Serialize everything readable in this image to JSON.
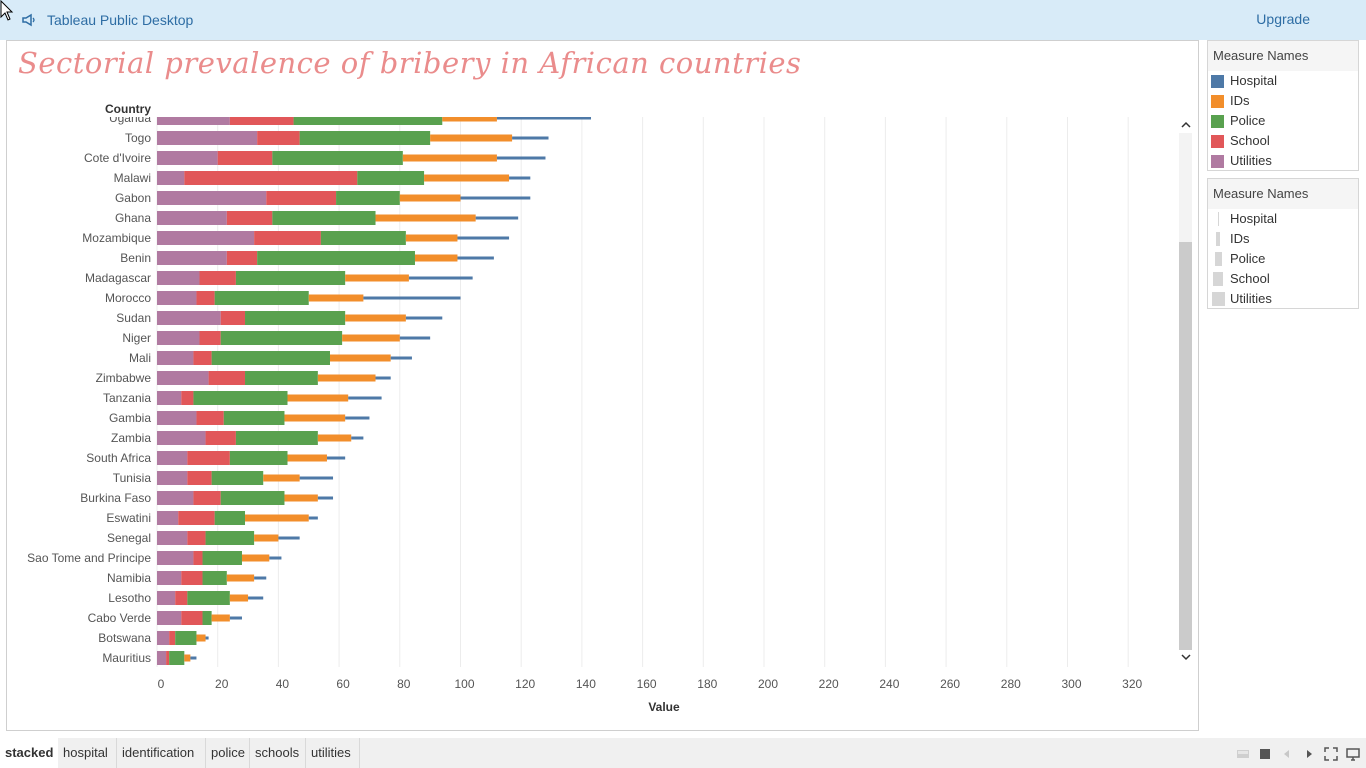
{
  "app": {
    "title": "Tableau Public Desktop",
    "upgrade_label": "Upgrade"
  },
  "viz": {
    "title": "Sectorial prevalence of bribery in African countries",
    "row_header": "Country",
    "x_axis_title": "Value"
  },
  "chart_data": {
    "type": "bar",
    "stacked": true,
    "orientation": "horizontal",
    "title": "Sectorial prevalence of bribery in African countries",
    "xlabel": "Value",
    "ylabel": "Country",
    "xlim": [
      0,
      330
    ],
    "xticks": [
      0,
      20,
      40,
      60,
      80,
      100,
      120,
      140,
      160,
      180,
      200,
      220,
      240,
      260,
      280,
      300,
      320
    ],
    "grid": true,
    "legend_position": "right",
    "categories": [
      "Uganda",
      "Togo",
      "Cote d'Ivoire",
      "Malawi",
      "Gabon",
      "Ghana",
      "Mozambique",
      "Benin",
      "Madagascar",
      "Morocco",
      "Sudan",
      "Niger",
      "Mali",
      "Zimbabwe",
      "Tanzania",
      "Gambia",
      "Zambia",
      "South Africa",
      "Tunisia",
      "Burkina Faso",
      "Eswatini",
      "Senegal",
      "Sao Tome and Principe",
      "Namibia",
      "Lesotho",
      "Cabo Verde",
      "Botswana",
      "Mauritius"
    ],
    "series": [
      {
        "name": "Utilities",
        "color": "#b07aa1",
        "thick": true,
        "values": [
          24,
          33,
          20,
          9,
          36,
          23,
          32,
          23,
          14,
          13,
          21,
          14,
          12,
          17,
          8,
          13,
          16,
          10,
          10,
          12,
          7,
          10,
          12,
          8,
          6,
          8,
          4,
          3
        ]
      },
      {
        "name": "School",
        "color": "#e15759",
        "thick": true,
        "values": [
          21,
          14,
          18,
          57,
          23,
          15,
          22,
          10,
          12,
          6,
          8,
          7,
          6,
          12,
          4,
          9,
          10,
          14,
          8,
          9,
          12,
          6,
          3,
          7,
          4,
          7,
          2,
          1
        ]
      },
      {
        "name": "Police",
        "color": "#59a14f",
        "thick": true,
        "values": [
          49,
          43,
          43,
          22,
          21,
          34,
          28,
          52,
          36,
          31,
          33,
          40,
          39,
          24,
          31,
          20,
          27,
          19,
          17,
          21,
          10,
          16,
          13,
          8,
          14,
          3,
          7,
          5
        ]
      },
      {
        "name": "IDs",
        "color": "#f28e2b",
        "thick": false,
        "values": [
          18,
          27,
          31,
          28,
          20,
          33,
          17,
          14,
          21,
          18,
          20,
          19,
          20,
          19,
          20,
          20,
          11,
          13,
          12,
          11,
          21,
          8,
          9,
          9,
          6,
          6,
          3,
          2
        ]
      },
      {
        "name": "Hospital",
        "color": "#4e79a7",
        "thick": false,
        "values": [
          31,
          12,
          16,
          7,
          23,
          14,
          17,
          12,
          21,
          32,
          12,
          10,
          7,
          5,
          11,
          8,
          4,
          6,
          11,
          5,
          3,
          7,
          4,
          4,
          5,
          4,
          1,
          2
        ]
      }
    ]
  },
  "legends": {
    "color": {
      "title": "Measure Names",
      "items": [
        {
          "label": "Hospital",
          "color": "#4e79a7"
        },
        {
          "label": "IDs",
          "color": "#f28e2b"
        },
        {
          "label": "Police",
          "color": "#59a14f"
        },
        {
          "label": "School",
          "color": "#e15759"
        },
        {
          "label": "Utilities",
          "color": "#b07aa1"
        }
      ]
    },
    "size": {
      "title": "Measure Names",
      "items": [
        {
          "label": "Hospital",
          "level": 1
        },
        {
          "label": "IDs",
          "level": 2
        },
        {
          "label": "Police",
          "level": 3
        },
        {
          "label": "School",
          "level": 4
        },
        {
          "label": "Utilities",
          "level": 5
        }
      ]
    }
  },
  "tabs": [
    {
      "label": "stacked",
      "active": true
    },
    {
      "label": "hospital"
    },
    {
      "label": "identification"
    },
    {
      "label": "police"
    },
    {
      "label": "schools"
    },
    {
      "label": "utilities"
    }
  ],
  "toolbar_icons": [
    "layout-icon",
    "present-icon",
    "back-icon",
    "forward-icon",
    "fullscreen-icon",
    "device-preview-icon"
  ]
}
